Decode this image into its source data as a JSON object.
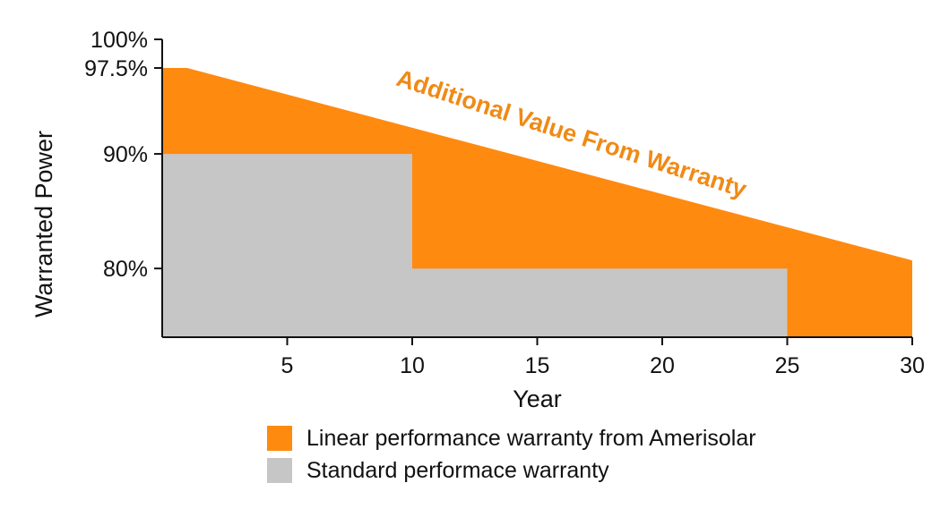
{
  "chart_data": {
    "type": "area",
    "xlabel": "Year",
    "ylabel": "Warranted Power",
    "xlim": [
      0,
      30
    ],
    "ylim": [
      74,
      100
    ],
    "x_ticks": [
      5,
      10,
      15,
      20,
      25,
      30
    ],
    "y_ticks": [
      {
        "value": 100,
        "label": "100%"
      },
      {
        "value": 97.5,
        "label": "97.5%"
      },
      {
        "value": 90,
        "label": "90%"
      },
      {
        "value": 80,
        "label": "80%"
      }
    ],
    "series": [
      {
        "name": "Linear performance warranty from Amerisolar",
        "color": "#ff8a10",
        "points": [
          [
            0,
            97.5
          ],
          [
            1,
            97.5
          ],
          [
            30,
            80.7
          ]
        ]
      },
      {
        "name": "Standard performace warranty",
        "color": "#c6c6c6",
        "points": [
          [
            0,
            90
          ],
          [
            10,
            90
          ],
          [
            10,
            80
          ],
          [
            25,
            80
          ]
        ]
      }
    ],
    "annotation": {
      "text": "Additional Value From Warranty",
      "color": "#f08a16"
    },
    "grid": false,
    "legend_position": "bottom"
  }
}
